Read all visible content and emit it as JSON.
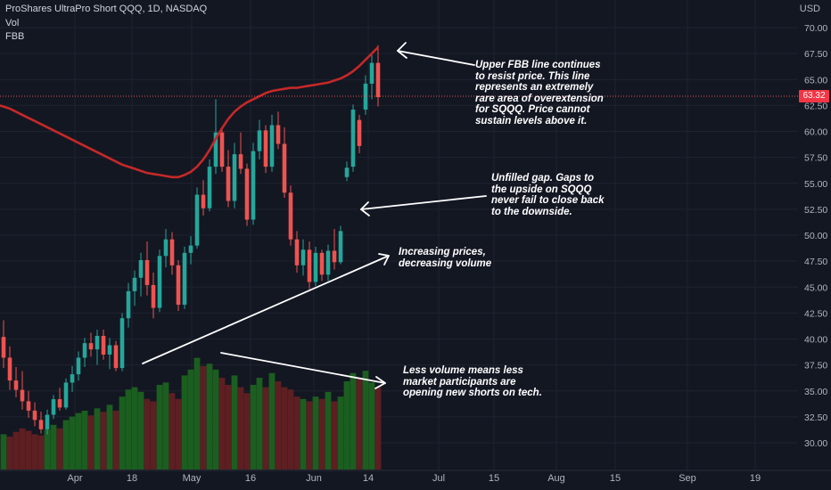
{
  "legend": {
    "symbol": "ProShares UltraPro Short QQQ, 1D, NASDAQ",
    "volume": "Vol",
    "indicator": "FBB"
  },
  "price_axis": {
    "currency": "USD",
    "current_price": "63.32"
  },
  "annotations": {
    "upper_fbb": [
      "Upper FBB line continues",
      "to resist price. This line",
      "represents an extremely",
      "rare area of overextension",
      "for SQQQ. Price cannot",
      "sustain levels above it."
    ],
    "gap": [
      "Unfilled gap. Gaps to",
      "the upside on SQQQ",
      "never fail to close back",
      "to the downside."
    ],
    "price_volume": [
      "Increasing prices,",
      "decreasing volume"
    ],
    "volume": [
      "Less volume means less",
      "market participants are",
      "opening new shorts on tech."
    ]
  },
  "colors": {
    "background": "#131722",
    "up": "#26a69a",
    "down": "#ef5350",
    "fbb_line": "#c62828",
    "vol_up": "#1b5e20",
    "vol_down": "#5d1f22",
    "annotation": "#ffffff"
  },
  "chart_data": {
    "type": "candlestick",
    "title": "ProShares UltraPro Short QQQ, 1D, NASDAQ",
    "y_axis": {
      "min": 28,
      "max": 72,
      "ticks": [
        "70.00",
        "67.50",
        "65.00",
        "62.50",
        "60.00",
        "57.50",
        "55.00",
        "52.50",
        "50.00",
        "47.50",
        "45.00",
        "42.50",
        "40.00",
        "37.50",
        "35.00",
        "32.50",
        "30.00"
      ]
    },
    "x_axis": {
      "ticks": [
        "Apr",
        "18",
        "May",
        "16",
        "Jun",
        "14",
        "Jul",
        "15",
        "Aug",
        "15",
        "Sep",
        "19"
      ]
    },
    "last_price": 63.32,
    "candles": [
      [
        40.2,
        41.8,
        37.2,
        38.2
      ],
      [
        38.2,
        39.3,
        35.1,
        36.0
      ],
      [
        36.0,
        37.3,
        34.4,
        35.1
      ],
      [
        35.1,
        36.9,
        33.2,
        34.0
      ],
      [
        34.0,
        35.0,
        32.4,
        33.1
      ],
      [
        33.1,
        33.9,
        31.6,
        32.2
      ],
      [
        32.2,
        33.0,
        30.9,
        31.3
      ],
      [
        31.3,
        33.2,
        30.8,
        32.7
      ],
      [
        32.7,
        34.6,
        32.3,
        34.2
      ],
      [
        34.2,
        35.3,
        33.1,
        33.4
      ],
      [
        33.4,
        36.2,
        33.2,
        35.8
      ],
      [
        35.8,
        37.4,
        34.9,
        36.6
      ],
      [
        36.6,
        38.8,
        36.0,
        38.2
      ],
      [
        38.2,
        40.1,
        37.3,
        39.6
      ],
      [
        39.6,
        40.6,
        38.3,
        39.0
      ],
      [
        39.0,
        40.9,
        37.5,
        40.3
      ],
      [
        40.3,
        40.9,
        38.0,
        38.5
      ],
      [
        38.5,
        40.1,
        37.1,
        39.4
      ],
      [
        39.4,
        39.8,
        36.9,
        37.2
      ],
      [
        37.2,
        42.5,
        36.9,
        42.0
      ],
      [
        42.0,
        45.4,
        41.1,
        44.6
      ],
      [
        44.6,
        46.6,
        43.2,
        45.9
      ],
      [
        45.9,
        48.3,
        44.1,
        47.6
      ],
      [
        47.6,
        49.4,
        44.2,
        45.2
      ],
      [
        45.2,
        46.4,
        42.0,
        43.0
      ],
      [
        43.0,
        48.6,
        42.6,
        48.0
      ],
      [
        48.0,
        50.6,
        46.9,
        49.6
      ],
      [
        49.6,
        50.3,
        46.2,
        47.1
      ],
      [
        47.1,
        47.6,
        42.7,
        43.3
      ],
      [
        43.3,
        48.9,
        42.9,
        48.3
      ],
      [
        48.3,
        49.9,
        47.2,
        49.0
      ],
      [
        49.0,
        54.6,
        48.7,
        53.9
      ],
      [
        53.9,
        55.3,
        51.9,
        52.6
      ],
      [
        52.6,
        57.3,
        52.3,
        56.6
      ],
      [
        56.6,
        63.1,
        55.9,
        59.9
      ],
      [
        59.9,
        60.4,
        56.1,
        56.6
      ],
      [
        56.6,
        58.2,
        52.7,
        53.3
      ],
      [
        53.3,
        58.9,
        52.6,
        57.8
      ],
      [
        57.8,
        59.9,
        55.9,
        56.4
      ],
      [
        56.4,
        56.9,
        50.9,
        51.5
      ],
      [
        51.5,
        58.9,
        51.0,
        58.1
      ],
      [
        58.1,
        61.1,
        57.3,
        60.1
      ],
      [
        60.1,
        60.6,
        56.0,
        56.6
      ],
      [
        56.6,
        61.6,
        56.1,
        60.6
      ],
      [
        60.6,
        61.9,
        58.3,
        58.8
      ],
      [
        58.8,
        60.4,
        53.6,
        54.1
      ],
      [
        54.1,
        54.8,
        49.0,
        49.6
      ],
      [
        49.6,
        50.4,
        46.4,
        47.1
      ],
      [
        47.1,
        49.6,
        46.1,
        48.6
      ],
      [
        48.6,
        49.4,
        44.8,
        45.5
      ],
      [
        45.5,
        48.9,
        45.1,
        48.3
      ],
      [
        48.3,
        48.6,
        45.6,
        46.2
      ],
      [
        46.2,
        49.1,
        45.6,
        48.5
      ],
      [
        48.5,
        50.6,
        46.7,
        47.4
      ],
      [
        47.4,
        50.9,
        47.2,
        50.4
      ],
      [
        55.6,
        57.1,
        55.2,
        56.5
      ],
      [
        56.6,
        62.6,
        56.1,
        62.1
      ],
      [
        61.1,
        61.6,
        57.9,
        58.6
      ],
      [
        62.1,
        65.4,
        61.6,
        64.6
      ],
      [
        64.6,
        67.6,
        63.1,
        66.6
      ],
      [
        66.6,
        68.3,
        62.4,
        63.3
      ]
    ],
    "volume_up": [
      true,
      false,
      false,
      false,
      false,
      false,
      false,
      true,
      true,
      false,
      true,
      true,
      true,
      true,
      false,
      true,
      false,
      true,
      false,
      true,
      true,
      true,
      true,
      false,
      false,
      true,
      true,
      false,
      false,
      true,
      true,
      true,
      false,
      true,
      true,
      false,
      false,
      true,
      false,
      false,
      true,
      true,
      false,
      true,
      false,
      false,
      false,
      false,
      true,
      false,
      true,
      false,
      true,
      false,
      true,
      true,
      true,
      false,
      true,
      true,
      false
    ],
    "volume": [
      0.3,
      0.28,
      0.32,
      0.35,
      0.33,
      0.3,
      0.29,
      0.34,
      0.38,
      0.35,
      0.42,
      0.45,
      0.48,
      0.5,
      0.46,
      0.52,
      0.49,
      0.55,
      0.5,
      0.62,
      0.68,
      0.7,
      0.66,
      0.6,
      0.58,
      0.72,
      0.74,
      0.65,
      0.6,
      0.8,
      0.85,
      0.95,
      0.88,
      0.9,
      0.85,
      0.78,
      0.72,
      0.8,
      0.7,
      0.65,
      0.72,
      0.78,
      0.7,
      0.82,
      0.75,
      0.7,
      0.68,
      0.62,
      0.6,
      0.58,
      0.62,
      0.6,
      0.66,
      0.58,
      0.62,
      0.75,
      0.82,
      0.78,
      0.84,
      0.74,
      0.7
    ],
    "fbb_upper": [
      62.5,
      62.2,
      61.9,
      61.6,
      61.3,
      61.0,
      60.7,
      60.4,
      60.1,
      59.8,
      59.5,
      59.2,
      58.9,
      58.6,
      58.3,
      58.0,
      57.7,
      57.4,
      57.1,
      56.8,
      56.6,
      56.4,
      56.2,
      56.0,
      55.9,
      55.8,
      55.7,
      55.6,
      55.6,
      55.8,
      56.1,
      56.6,
      57.3,
      58.2,
      59.3,
      60.3,
      61.2,
      61.9,
      62.4,
      62.8,
      63.1,
      63.4,
      63.7,
      63.9,
      64.0,
      64.1,
      64.2,
      64.2,
      64.3,
      64.4,
      64.5,
      64.6,
      64.7,
      64.9,
      65.1,
      65.4,
      65.8,
      66.3,
      66.9,
      67.5,
      68.1
    ]
  }
}
